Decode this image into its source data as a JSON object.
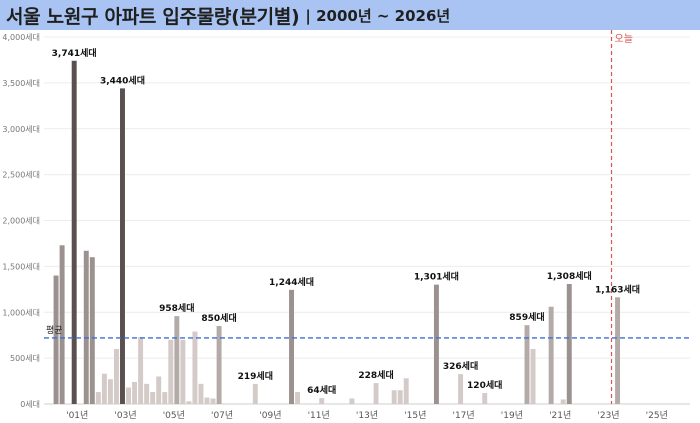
{
  "header": {
    "title": "서울 노원구 아파트 입주물량(분기별)",
    "subtitle": "| 2000년 ~ 2026년"
  },
  "colors": {
    "header_bg": "#a9c4f2",
    "avg_line": "#3d6fd6",
    "today_line": "#d9534f",
    "bar_peak": "#5a5050",
    "bar_dark": "#9b918e",
    "bar_mid": "#b4aaa7",
    "bar_light": "#d4cbc8"
  },
  "chart_data": {
    "type": "bar",
    "xlim": [
      2000.0,
      2026.75
    ],
    "ylim": [
      0,
      4000
    ],
    "y_ticks": [
      0,
      500,
      1000,
      1500,
      2000,
      2500,
      3000,
      3500,
      4000
    ],
    "y_tick_labels": [
      "0세대",
      "500세대",
      "1,000세대",
      "1,500세대",
      "2,000세대",
      "2,500세대",
      "3,000세대",
      "3,500세대",
      "4,000세대"
    ],
    "x_ticks": [
      2001,
      2003,
      2005,
      2007,
      2009,
      2011,
      2013,
      2015,
      2017,
      2019,
      2021,
      2023,
      2025
    ],
    "x_tick_labels": [
      "'01년",
      "'03년",
      "'05년",
      "'07년",
      "'09년",
      "'11년",
      "'13년",
      "'15년",
      "'17년",
      "'19년",
      "'21년",
      "'23년",
      "'25년"
    ],
    "average": 720,
    "average_label": "평균",
    "today": 2023.5,
    "today_label": "오늘",
    "bars": [
      {
        "x": 2000.5,
        "value": 1400,
        "shade": "dark"
      },
      {
        "x": 2000.75,
        "value": 1730,
        "shade": "dark"
      },
      {
        "x": 2001.25,
        "value": 3741,
        "shade": "peak",
        "label": "3,741세대"
      },
      {
        "x": 2001.75,
        "value": 1670,
        "shade": "dark"
      },
      {
        "x": 2002.0,
        "value": 1600,
        "shade": "dark"
      },
      {
        "x": 2002.25,
        "value": 130,
        "shade": "light"
      },
      {
        "x": 2002.5,
        "value": 330,
        "shade": "light"
      },
      {
        "x": 2002.75,
        "value": 270,
        "shade": "light"
      },
      {
        "x": 2003.0,
        "value": 600,
        "shade": "light"
      },
      {
        "x": 2003.25,
        "value": 3440,
        "shade": "peak",
        "label": "3,440세대"
      },
      {
        "x": 2003.5,
        "value": 180,
        "shade": "light"
      },
      {
        "x": 2003.75,
        "value": 240,
        "shade": "light"
      },
      {
        "x": 2004.0,
        "value": 730,
        "shade": "light"
      },
      {
        "x": 2004.25,
        "value": 220,
        "shade": "light"
      },
      {
        "x": 2004.5,
        "value": 130,
        "shade": "light"
      },
      {
        "x": 2004.75,
        "value": 300,
        "shade": "light"
      },
      {
        "x": 2005.0,
        "value": 130,
        "shade": "light"
      },
      {
        "x": 2005.25,
        "value": 700,
        "shade": "light"
      },
      {
        "x": 2005.5,
        "value": 958,
        "shade": "mid",
        "label": "958세대"
      },
      {
        "x": 2005.75,
        "value": 700,
        "shade": "light"
      },
      {
        "x": 2006.0,
        "value": 30,
        "shade": "light"
      },
      {
        "x": 2006.25,
        "value": 790,
        "shade": "light"
      },
      {
        "x": 2006.5,
        "value": 220,
        "shade": "light"
      },
      {
        "x": 2006.75,
        "value": 70,
        "shade": "light"
      },
      {
        "x": 2007.0,
        "value": 60,
        "shade": "light"
      },
      {
        "x": 2007.25,
        "value": 850,
        "shade": "mid",
        "label": "850세대"
      },
      {
        "x": 2008.75,
        "value": 219,
        "shade": "light",
        "label": "219세대"
      },
      {
        "x": 2010.25,
        "value": 1244,
        "shade": "dark",
        "label": "1,244세대"
      },
      {
        "x": 2010.5,
        "value": 130,
        "shade": "light"
      },
      {
        "x": 2011.5,
        "value": 64,
        "shade": "light",
        "label": "64세대"
      },
      {
        "x": 2012.75,
        "value": 60,
        "shade": "light"
      },
      {
        "x": 2013.75,
        "value": 228,
        "shade": "light",
        "label": "228세대"
      },
      {
        "x": 2014.5,
        "value": 150,
        "shade": "light"
      },
      {
        "x": 2014.75,
        "value": 150,
        "shade": "light"
      },
      {
        "x": 2015.0,
        "value": 280,
        "shade": "light"
      },
      {
        "x": 2016.25,
        "value": 1301,
        "shade": "dark",
        "label": "1,301세대"
      },
      {
        "x": 2017.25,
        "value": 326,
        "shade": "light",
        "label": "326세대"
      },
      {
        "x": 2018.25,
        "value": 120,
        "shade": "light",
        "label": "120세대"
      },
      {
        "x": 2020.0,
        "value": 859,
        "shade": "mid",
        "label": "859세대"
      },
      {
        "x": 2020.25,
        "value": 600,
        "shade": "light"
      },
      {
        "x": 2021.0,
        "value": 1060,
        "shade": "mid"
      },
      {
        "x": 2021.5,
        "value": 50,
        "shade": "light"
      },
      {
        "x": 2021.75,
        "value": 1308,
        "shade": "dark",
        "label": "1,308세대"
      },
      {
        "x": 2023.75,
        "value": 1163,
        "shade": "mid",
        "label": "1,163세대"
      }
    ]
  }
}
